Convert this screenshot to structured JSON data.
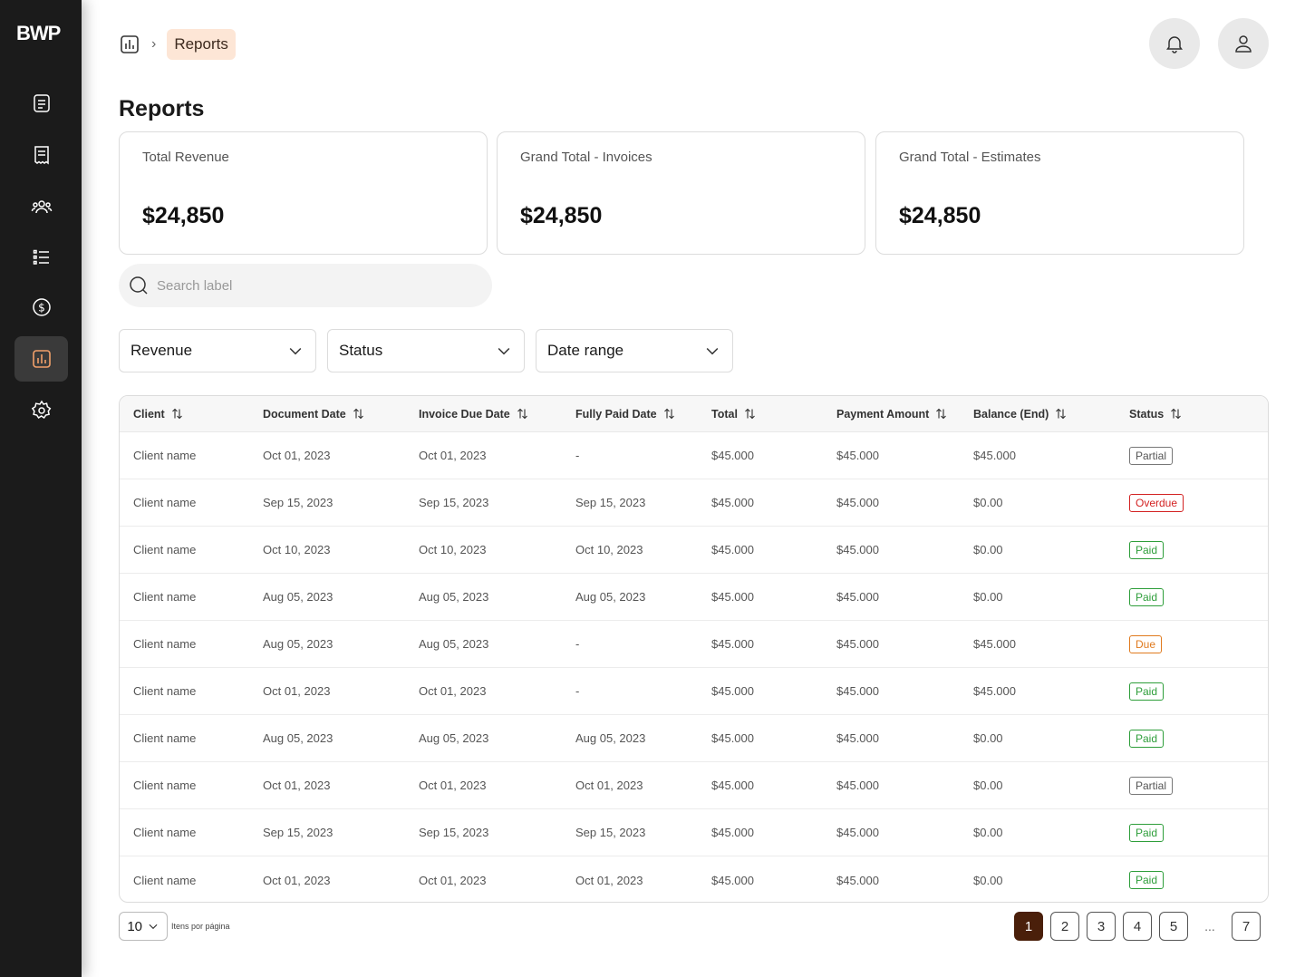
{
  "app": {
    "logo": "BWP"
  },
  "breadcrumb": {
    "current": "Reports"
  },
  "page": {
    "title": "Reports"
  },
  "cards": [
    {
      "label": "Total Revenue",
      "value": "$24,850"
    },
    {
      "label": "Grand Total - Invoices",
      "value": "$24,850"
    },
    {
      "label": "Grand Total - Estimates",
      "value": "$24,850"
    }
  ],
  "search": {
    "placeholder": "Search label"
  },
  "filters": [
    {
      "label": "Revenue"
    },
    {
      "label": "Status"
    },
    {
      "label": "Date range"
    }
  ],
  "table": {
    "headers": [
      "Client",
      "Document Date",
      "Invoice Due Date",
      "Fully Paid Date",
      "Total",
      "Payment Amount",
      "Balance (End)",
      "Status"
    ],
    "rows": [
      [
        "Client name",
        "Oct 01, 2023",
        "Oct 01, 2023",
        "-",
        "$45.000",
        "$45.000",
        "$45.000",
        "Partial"
      ],
      [
        "Client name",
        "Sep 15, 2023",
        "Sep 15, 2023",
        "Sep 15, 2023",
        "$45.000",
        "$45.000",
        "$0.00",
        "Overdue"
      ],
      [
        "Client name",
        "Oct 10, 2023",
        "Oct 10, 2023",
        "Oct 10, 2023",
        "$45.000",
        "$45.000",
        "$0.00",
        "Paid"
      ],
      [
        "Client name",
        "Aug 05, 2023",
        "Aug 05, 2023",
        "Aug 05, 2023",
        "$45.000",
        "$45.000",
        "$0.00",
        "Paid"
      ],
      [
        "Client name",
        "Aug 05, 2023",
        "Aug 05, 2023",
        "-",
        "$45.000",
        "$45.000",
        "$45.000",
        "Due"
      ],
      [
        "Client name",
        "Oct 01, 2023",
        "Oct 01, 2023",
        "-",
        "$45.000",
        "$45.000",
        "$45.000",
        "Paid"
      ],
      [
        "Client name",
        "Aug 05, 2023",
        "Aug 05, 2023",
        "Aug 05, 2023",
        "$45.000",
        "$45.000",
        "$0.00",
        "Paid"
      ],
      [
        "Client name",
        "Oct 01, 2023",
        "Oct 01, 2023",
        "Oct 01, 2023",
        "$45.000",
        "$45.000",
        "$0.00",
        "Partial"
      ],
      [
        "Client name",
        "Sep 15, 2023",
        "Sep 15, 2023",
        "Sep 15, 2023",
        "$45.000",
        "$45.000",
        "$0.00",
        "Paid"
      ],
      [
        "Client name",
        "Oct 01, 2023",
        "Oct 01, 2023",
        "Oct 01, 2023",
        "$45.000",
        "$45.000",
        "$0.00",
        "Paid"
      ]
    ]
  },
  "pagination": {
    "per_page": "10",
    "per_page_label": "Itens por página",
    "pages": [
      "1",
      "2",
      "3",
      "4",
      "5"
    ],
    "ellipsis": "...",
    "last": "7",
    "active": "1"
  },
  "colors": {
    "sidebar": "#1b1b1b",
    "accent": "#4a1f0a",
    "crumb_bg": "#fde6d6",
    "paid": "#2e9e3a",
    "overdue": "#d32222",
    "due": "#e07a1e"
  },
  "icons": {
    "nav": [
      "document-icon",
      "receipt-icon",
      "users-icon",
      "list-icon",
      "dollar-icon",
      "chart-icon",
      "gear-icon"
    ],
    "top": [
      "bell-icon",
      "user-icon"
    ]
  }
}
